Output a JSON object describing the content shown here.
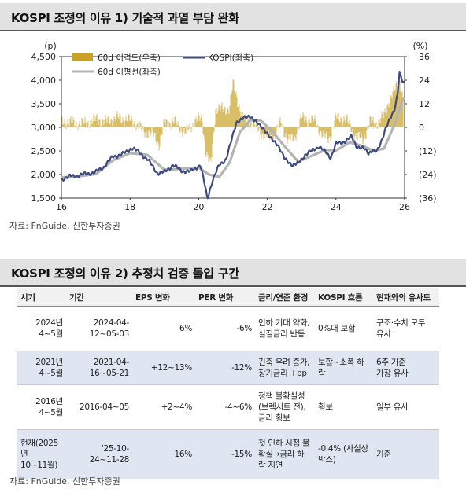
{
  "section1": {
    "title": "KOSPI 조정의 이유 1) 기술적 과열 부담 완화"
  },
  "section2": {
    "title": "KOSPI 조정의 이유 2) 추정치 검증 돌입 구간"
  },
  "source_text": "자료: FnGuide, 신한투자증권",
  "chart_data": {
    "type": "line",
    "unit_left": "(p)",
    "unit_right": "(%)",
    "ylim_left": [
      1500,
      4500
    ],
    "ylim_right": [
      -36,
      36
    ],
    "yticks_left": [
      "1,500",
      "2,000",
      "2,500",
      "3,000",
      "3,500",
      "4,000",
      "4,500"
    ],
    "yticks_right": [
      "(36)",
      "(24)",
      "(12)",
      "0",
      "12",
      "24",
      "36"
    ],
    "xlim": [
      2016,
      2026
    ],
    "xticks": [
      "16",
      "18",
      "20",
      "22",
      "24",
      "26"
    ],
    "legend": [
      "60d 이격도(우축)",
      "KOSPI(좌축)",
      "60d 이평선(좌축)"
    ],
    "colors": {
      "deviation": "#c9a227",
      "kospi": "#3c4a7d",
      "ma": "#b4b4b4"
    },
    "series": [
      {
        "name": "KOSPI(좌축)",
        "axis": "left",
        "x": [
          2016.0,
          2016.25,
          2016.5,
          2016.75,
          2017.0,
          2017.25,
          2017.5,
          2017.75,
          2017.9,
          2018.05,
          2018.25,
          2018.5,
          2018.8,
          2019.0,
          2019.25,
          2019.5,
          2019.75,
          2019.9,
          2020.05,
          2020.2,
          2020.25,
          2020.4,
          2020.6,
          2020.8,
          2020.95,
          2021.1,
          2021.3,
          2021.5,
          2021.7,
          2021.9,
          2022.1,
          2022.3,
          2022.5,
          2022.75,
          2022.9,
          2023.1,
          2023.3,
          2023.5,
          2023.7,
          2023.85,
          2024.0,
          2024.2,
          2024.45,
          2024.6,
          2024.8,
          2024.95,
          2025.05,
          2025.2,
          2025.3,
          2025.45,
          2025.6,
          2025.7,
          2025.8,
          2025.85,
          2025.92,
          2026.0
        ],
        "values": [
          1900,
          1960,
          1980,
          2020,
          2050,
          2170,
          2380,
          2420,
          2480,
          2570,
          2480,
          2330,
          2030,
          2050,
          2200,
          2080,
          2060,
          2130,
          2200,
          1700,
          1480,
          1870,
          2200,
          2330,
          2700,
          3120,
          3180,
          3250,
          3080,
          2980,
          2750,
          2650,
          2330,
          2200,
          2230,
          2420,
          2500,
          2600,
          2470,
          2360,
          2650,
          2680,
          2800,
          2600,
          2550,
          2450,
          2520,
          2480,
          2650,
          3000,
          3200,
          3350,
          3750,
          4200,
          4000,
          3900
        ]
      },
      {
        "name": "60d 이평선(좌축)",
        "axis": "left",
        "x": [
          2016.0,
          2016.5,
          2017.0,
          2017.5,
          2018.0,
          2018.5,
          2019.0,
          2019.5,
          2020.0,
          2020.3,
          2020.6,
          2020.9,
          2021.2,
          2021.5,
          2021.8,
          2022.1,
          2022.5,
          2022.9,
          2023.3,
          2023.7,
          2024.0,
          2024.4,
          2024.8,
          2025.1,
          2025.4,
          2025.7,
          2025.9,
          2026.0
        ],
        "values": [
          1940,
          1960,
          2010,
          2300,
          2450,
          2420,
          2100,
          2120,
          2150,
          2000,
          1950,
          2250,
          2900,
          3150,
          3150,
          2950,
          2600,
          2270,
          2400,
          2520,
          2510,
          2680,
          2600,
          2500,
          2550,
          3050,
          3500,
          3650
        ]
      },
      {
        "name": "60d 이격도(우축)",
        "axis": "right",
        "style": "bars",
        "x": [
          2016.1,
          2016.4,
          2016.7,
          2017.0,
          2017.3,
          2017.6,
          2017.9,
          2018.1,
          2018.4,
          2018.7,
          2018.85,
          2019.0,
          2019.3,
          2019.6,
          2019.9,
          2020.1,
          2020.2,
          2020.35,
          2020.5,
          2020.7,
          2020.9,
          2021.0,
          2021.1,
          2021.3,
          2021.6,
          2021.9,
          2022.2,
          2022.4,
          2022.6,
          2022.8,
          2023.0,
          2023.2,
          2023.4,
          2023.6,
          2023.8,
          2024.0,
          2024.3,
          2024.6,
          2024.8,
          2025.0,
          2025.2,
          2025.4,
          2025.55,
          2025.7,
          2025.85,
          2025.95
        ],
        "values": [
          3,
          2,
          2,
          4,
          3,
          5,
          4,
          3,
          -2,
          -4,
          -9,
          2,
          3,
          -3,
          3,
          5,
          -12,
          -20,
          10,
          9,
          10,
          22,
          16,
          4,
          2,
          -4,
          -5,
          3,
          -7,
          -5,
          5,
          4,
          3,
          -4,
          -6,
          5,
          4,
          -5,
          -6,
          3,
          2,
          6,
          14,
          18,
          26,
          14
        ]
      }
    ]
  },
  "table": {
    "headers": [
      "시기",
      "기간",
      "EPS 변화",
      "PER 변화",
      "금리/연준 환경",
      "KOSPI 흐름",
      "현재와의 유사도"
    ],
    "rows": [
      [
        "2024년 4~5월",
        "2024-04-\n12~05-03",
        "6%",
        "-6%",
        "인하 기대 약화,\n실질금리 반등",
        "0%대 보합",
        "구조·수치 모두\n유사"
      ],
      [
        "2021년 4~5월",
        "2021-04-\n16~05-21",
        "+12~13%",
        "-12%",
        "긴축 우려 증가,\n장기금리 +bp",
        "보합~소폭 하락",
        "6주 기준\n가장 유사"
      ],
      [
        "2016년 4~5월",
        "2016-04~05",
        "+2~4%",
        "-4~6%",
        "정책 불확실성\n(브렉시트 전),\n금리 횡보",
        "횡보",
        "일부 유사"
      ],
      [
        "현재(2025년\n10~11월)",
        "'25-10-\n24~11-28",
        "16%",
        "-15%",
        "첫 인하 시점 불\n확실→금리 하\n락 지연",
        "-0.4% (사실상\n박스)",
        "기준"
      ]
    ]
  }
}
